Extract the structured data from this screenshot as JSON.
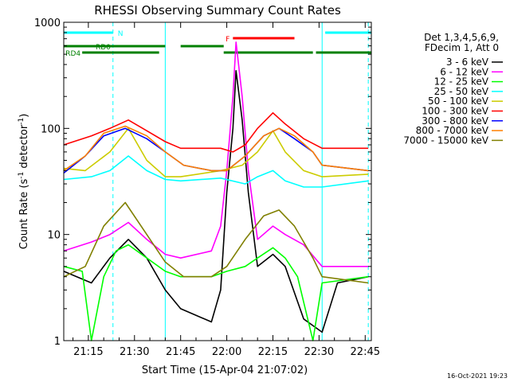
{
  "chart_data": {
    "type": "line",
    "title": "RHESSI Observing Summary Count Rates",
    "xlabel": "Start Time (15-Apr-04 21:07:02)",
    "ylabel_main": "Count Rate (s",
    "ylabel_sup1": "-1",
    "ylabel_mid": " detector",
    "ylabel_sup2": "-1",
    "ylabel_end": ")",
    "y_scale": "log",
    "ylim": [
      1,
      1000
    ],
    "xlim": [
      "21:07",
      "22:47"
    ],
    "x_ticks": [
      "21:15",
      "21:30",
      "21:45",
      "22:00",
      "22:15",
      "22:30",
      "22:45"
    ],
    "y_ticks": [
      "1",
      "10",
      "100",
      "1000"
    ],
    "legend_position": "right",
    "legend_header": [
      "Det 1,3,4,5,6,9,",
      "FDecim 1, Att 0"
    ],
    "footer_date": "16-Oct-2021 19:23",
    "flags": [
      {
        "label": "N",
        "color": "#00ffff",
        "segments": [
          [
            "21:07",
            "21:23"
          ],
          [
            "22:32",
            "22:47"
          ]
        ]
      },
      {
        "label": "F",
        "color": "#ff0000",
        "segments": [
          [
            "22:02",
            "22:22"
          ]
        ]
      },
      {
        "label": "RD0",
        "color": "#008000",
        "segments": [
          [
            "21:07",
            "21:40"
          ],
          [
            "21:45",
            "21:59"
          ]
        ]
      },
      {
        "label": "RD4",
        "color": "#008000",
        "segments": [
          [
            "21:13",
            "21:38"
          ],
          [
            "21:59",
            "22:28"
          ],
          [
            "22:29",
            "22:47"
          ]
        ]
      }
    ],
    "vlines": [
      {
        "time": "21:07",
        "color": "#00ffff",
        "style": "solid"
      },
      {
        "time": "21:23",
        "color": "#00ffff",
        "style": "dashed"
      },
      {
        "time": "21:40",
        "color": "#00ffff",
        "style": "solid"
      },
      {
        "time": "22:31",
        "color": "#00ffff",
        "style": "solid"
      },
      {
        "time": "22:46",
        "color": "#00ffff",
        "style": "dashed"
      }
    ],
    "series": [
      {
        "name": "3 - 6 keV",
        "color": "#000000",
        "points": [
          [
            "21:07",
            4.5
          ],
          [
            "21:16",
            3.5
          ],
          [
            "21:22",
            6
          ],
          [
            "21:28",
            9
          ],
          [
            "21:34",
            6
          ],
          [
            "21:40",
            3
          ],
          [
            "21:45",
            2
          ],
          [
            "21:55",
            1.5
          ],
          [
            "21:58",
            3
          ],
          [
            "22:00",
            25
          ],
          [
            "22:02",
            100
          ],
          [
            "22:03",
            350
          ],
          [
            "22:05",
            120
          ],
          [
            "22:07",
            25
          ],
          [
            "22:10",
            5
          ],
          [
            "22:15",
            6.5
          ],
          [
            "22:19",
            5
          ],
          [
            "22:25",
            1.6
          ],
          [
            "22:31",
            1.2
          ],
          [
            "22:36",
            3.5
          ],
          [
            "22:46",
            4
          ]
        ]
      },
      {
        "name": "6 - 12 keV",
        "color": "#ff00ff",
        "points": [
          [
            "21:07",
            7
          ],
          [
            "21:16",
            8.5
          ],
          [
            "21:22",
            10
          ],
          [
            "21:28",
            13
          ],
          [
            "21:34",
            9
          ],
          [
            "21:40",
            6.5
          ],
          [
            "21:45",
            6
          ],
          [
            "21:55",
            7
          ],
          [
            "21:58",
            12
          ],
          [
            "22:00",
            40
          ],
          [
            "22:02",
            200
          ],
          [
            "22:03",
            650
          ],
          [
            "22:05",
            200
          ],
          [
            "22:07",
            40
          ],
          [
            "22:10",
            9
          ],
          [
            "22:15",
            12
          ],
          [
            "22:19",
            10
          ],
          [
            "22:25",
            8
          ],
          [
            "22:31",
            5
          ],
          [
            "22:46",
            5
          ]
        ]
      },
      {
        "name": "12 - 25 keV",
        "color": "#00ff00",
        "points": [
          [
            "21:07",
            5
          ],
          [
            "21:13",
            4.5
          ],
          [
            "21:16",
            1
          ],
          [
            "21:20",
            4
          ],
          [
            "21:24",
            7
          ],
          [
            "21:28",
            8
          ],
          [
            "21:34",
            6
          ],
          [
            "21:40",
            4.5
          ],
          [
            "21:45",
            4
          ],
          [
            "21:55",
            4
          ],
          [
            "22:00",
            4.5
          ],
          [
            "22:06",
            5
          ],
          [
            "22:10",
            6
          ],
          [
            "22:15",
            7.5
          ],
          [
            "22:19",
            6
          ],
          [
            "22:23",
            4
          ],
          [
            "22:28",
            1
          ],
          [
            "22:31",
            3.5
          ],
          [
            "22:46",
            4
          ]
        ]
      },
      {
        "name": "25 - 50 keV",
        "color": "#00ffff",
        "points": [
          [
            "21:07",
            33
          ],
          [
            "21:16",
            35
          ],
          [
            "21:22",
            40
          ],
          [
            "21:28",
            55
          ],
          [
            "21:34",
            40
          ],
          [
            "21:40",
            33
          ],
          [
            "21:45",
            32
          ],
          [
            "21:58",
            34
          ],
          [
            "22:06",
            30
          ],
          [
            "22:10",
            35
          ],
          [
            "22:15",
            40
          ],
          [
            "22:19",
            32
          ],
          [
            "22:25",
            28
          ],
          [
            "22:31",
            28
          ],
          [
            "22:46",
            32
          ]
        ]
      },
      {
        "name": "50 - 100 keV",
        "color": "#cccc00",
        "points": [
          [
            "21:07",
            42
          ],
          [
            "21:14",
            40
          ],
          [
            "21:22",
            60
          ],
          [
            "21:28",
            100
          ],
          [
            "21:34",
            50
          ],
          [
            "21:40",
            35
          ],
          [
            "21:45",
            35
          ],
          [
            "21:58",
            40
          ],
          [
            "22:05",
            45
          ],
          [
            "22:10",
            60
          ],
          [
            "22:15",
            95
          ],
          [
            "22:19",
            60
          ],
          [
            "22:25",
            40
          ],
          [
            "22:31",
            35
          ],
          [
            "22:46",
            37
          ]
        ]
      },
      {
        "name": "100 - 300 keV",
        "color": "#ff0000",
        "points": [
          [
            "21:07",
            70
          ],
          [
            "21:16",
            85
          ],
          [
            "21:22",
            100
          ],
          [
            "21:28",
            120
          ],
          [
            "21:34",
            95
          ],
          [
            "21:40",
            75
          ],
          [
            "21:45",
            65
          ],
          [
            "21:58",
            65
          ],
          [
            "22:02",
            60
          ],
          [
            "22:06",
            70
          ],
          [
            "22:10",
            100
          ],
          [
            "22:15",
            140
          ],
          [
            "22:19",
            110
          ],
          [
            "22:25",
            80
          ],
          [
            "22:31",
            65
          ],
          [
            "22:46",
            65
          ]
        ]
      },
      {
        "name": "300 - 800 keV",
        "color": "#0000ff",
        "points": [
          [
            "21:07",
            38
          ],
          [
            "21:14",
            55
          ],
          [
            "21:20",
            85
          ],
          [
            "21:27",
            100
          ],
          [
            "21:34",
            80
          ],
          [
            "21:40",
            60
          ],
          [
            "21:46",
            45
          ],
          [
            "21:55",
            40
          ],
          [
            "22:00",
            40
          ],
          [
            "22:06",
            55
          ],
          [
            "22:12",
            85
          ],
          [
            "22:17",
            100
          ],
          [
            "22:22",
            80
          ],
          [
            "22:28",
            60
          ],
          [
            "22:31",
            45
          ],
          [
            "22:46",
            40
          ]
        ]
      },
      {
        "name": "800 - 7000 keV",
        "color": "#ff8000",
        "points": [
          [
            "21:07",
            40
          ],
          [
            "21:14",
            55
          ],
          [
            "21:20",
            90
          ],
          [
            "21:27",
            105
          ],
          [
            "21:34",
            85
          ],
          [
            "21:40",
            60
          ],
          [
            "21:46",
            45
          ],
          [
            "21:55",
            40
          ],
          [
            "22:00",
            40
          ],
          [
            "22:06",
            55
          ],
          [
            "22:12",
            85
          ],
          [
            "22:17",
            100
          ],
          [
            "22:22",
            85
          ],
          [
            "22:28",
            60
          ],
          [
            "22:31",
            45
          ],
          [
            "22:46",
            40
          ]
        ]
      },
      {
        "name": "7000 - 15000 keV",
        "color": "#808000",
        "points": [
          [
            "21:07",
            4
          ],
          [
            "21:14",
            5
          ],
          [
            "21:20",
            12
          ],
          [
            "21:27",
            20
          ],
          [
            "21:34",
            10
          ],
          [
            "21:40",
            5.5
          ],
          [
            "21:46",
            4
          ],
          [
            "21:55",
            4
          ],
          [
            "22:00",
            5
          ],
          [
            "22:06",
            9
          ],
          [
            "22:12",
            15
          ],
          [
            "22:17",
            17
          ],
          [
            "22:22",
            12
          ],
          [
            "22:28",
            6
          ],
          [
            "22:31",
            4
          ],
          [
            "22:46",
            3.5
          ]
        ]
      }
    ]
  }
}
